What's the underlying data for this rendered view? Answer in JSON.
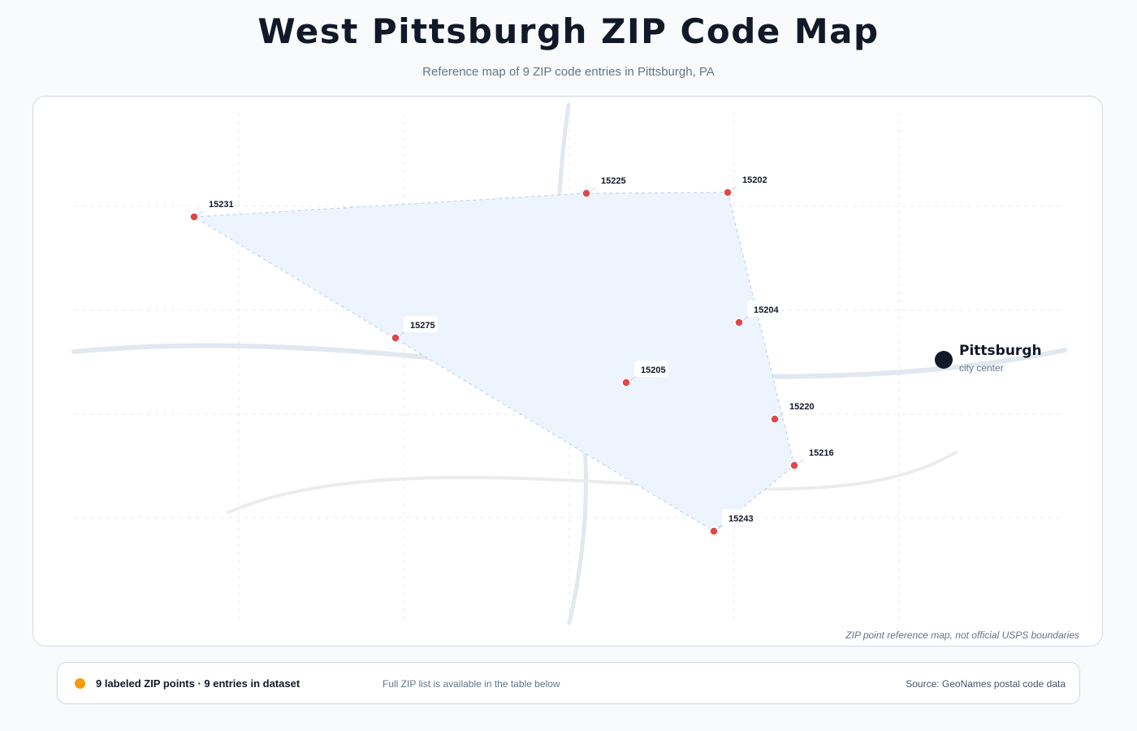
{
  "title": "West Pittsburgh ZIP Code Map",
  "subtitle": "Reference map of 9 ZIP code entries in Pittsburgh, PA",
  "map": {
    "disclaimer": "ZIP point reference map, not official USPS boundaries",
    "city": {
      "name": "Pittsburgh",
      "description": "city center"
    },
    "zips": [
      {
        "zip": "15231"
      },
      {
        "zip": "15225"
      },
      {
        "zip": "15202"
      },
      {
        "zip": "15204"
      },
      {
        "zip": "15275"
      },
      {
        "zip": "15205"
      },
      {
        "zip": "15220"
      },
      {
        "zip": "15216"
      },
      {
        "zip": "15243"
      }
    ],
    "colors": {
      "zip_marker": "#e04848",
      "coverage_fill": "#eef4fe",
      "coverage_stroke": "#bfd5f3",
      "road": "#e2e8f0",
      "city_marker": "#111827"
    }
  },
  "footer": {
    "legend_color": "#f59e0b",
    "count_text": "9 labeled ZIP points · 9 entries in dataset",
    "note": "Full ZIP list is available in the table below",
    "source": "Source: GeoNames postal code data"
  }
}
